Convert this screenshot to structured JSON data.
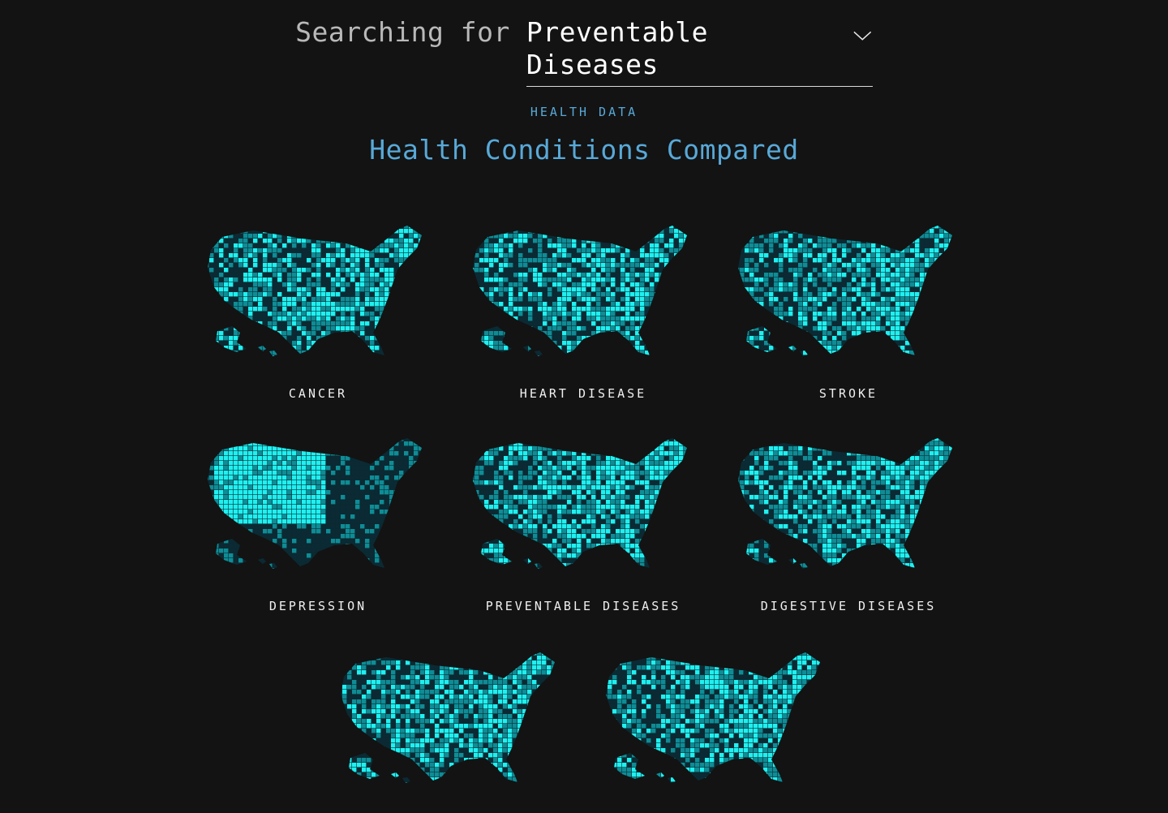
{
  "search": {
    "prefix": "Searching for",
    "selected": "Preventable Diseases",
    "chevron_icon": "chevron-down-icon"
  },
  "section": {
    "eyebrow": "HEALTH DATA",
    "title": "Health Conditions Compared"
  },
  "maps": [
    {
      "label": "CANCER",
      "icon": "us-map-icon"
    },
    {
      "label": "HEART DISEASE",
      "icon": "us-map-icon"
    },
    {
      "label": "STROKE",
      "icon": "us-map-icon"
    },
    {
      "label": "DEPRESSION",
      "icon": "us-map-icon"
    },
    {
      "label": "PREVENTABLE DISEASES",
      "icon": "us-map-icon"
    },
    {
      "label": "DIGESTIVE DISEASES",
      "icon": "us-map-icon"
    },
    {
      "label": "",
      "icon": "us-map-icon"
    },
    {
      "label": "",
      "icon": "us-map-icon"
    }
  ],
  "colors": {
    "background": "#131313",
    "accent": "#58a9d8",
    "map_bright": "#1ff0f0",
    "map_mid": "#0f8c95",
    "map_dark": "#0b2a33"
  }
}
